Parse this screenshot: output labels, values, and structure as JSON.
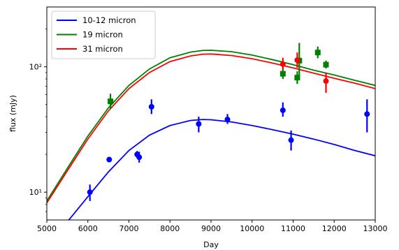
{
  "chart_data": {
    "type": "scatter",
    "xlabel": "Day",
    "ylabel": "flux (mJy)",
    "xlim": [
      5000,
      13000
    ],
    "ylim": [
      6,
      300
    ],
    "yscale": "log",
    "grid": false,
    "legend_position": "top-left",
    "x_ticks": [
      5000,
      6000,
      7000,
      8000,
      9000,
      10000,
      11000,
      12000,
      13000
    ],
    "x_tick_labels": [
      "5000",
      "6000",
      "7000",
      "8000",
      "9000",
      "10000",
      "11000",
      "12000",
      "13000"
    ],
    "y_ticks": [
      10,
      100
    ],
    "y_tick_labels": [
      "10¹",
      "10²"
    ],
    "series": [
      {
        "name": "10-12 micron",
        "color": "#0000ff",
        "marker": "circle",
        "points": [
          {
            "x": 6050,
            "y": 10,
            "ylo": 8.5,
            "yhi": 11.5
          },
          {
            "x": 6520,
            "y": 18.2,
            "ylo": 17.3,
            "yhi": 19.1
          },
          {
            "x": 7200,
            "y": 20,
            "ylo": 18.8,
            "yhi": 21.3
          },
          {
            "x": 7250,
            "y": 19,
            "ylo": 17.2,
            "yhi": 21
          },
          {
            "x": 7550,
            "y": 48,
            "ylo": 42,
            "yhi": 55
          },
          {
            "x": 8700,
            "y": 35,
            "ylo": 30,
            "yhi": 40
          },
          {
            "x": 9400,
            "y": 38,
            "ylo": 35,
            "yhi": 42
          },
          {
            "x": 10750,
            "y": 45,
            "ylo": 40,
            "yhi": 52
          },
          {
            "x": 10950,
            "y": 26,
            "ylo": 21.5,
            "yhi": 31
          },
          {
            "x": 12800,
            "y": 42,
            "ylo": 30,
            "yhi": 55
          }
        ],
        "model": [
          {
            "x": 5000,
            "y": 3.8
          },
          {
            "x": 5500,
            "y": 5.8
          },
          {
            "x": 6000,
            "y": 9.2
          },
          {
            "x": 6500,
            "y": 14.5
          },
          {
            "x": 7000,
            "y": 21.5
          },
          {
            "x": 7500,
            "y": 28.5
          },
          {
            "x": 8000,
            "y": 34
          },
          {
            "x": 8500,
            "y": 37.3
          },
          {
            "x": 8800,
            "y": 38
          },
          {
            "x": 9000,
            "y": 37.8
          },
          {
            "x": 9500,
            "y": 36.3
          },
          {
            "x": 10000,
            "y": 34
          },
          {
            "x": 10500,
            "y": 31.5
          },
          {
            "x": 11000,
            "y": 29
          },
          {
            "x": 11500,
            "y": 26.5
          },
          {
            "x": 12000,
            "y": 24
          },
          {
            "x": 12500,
            "y": 21.5
          },
          {
            "x": 13000,
            "y": 19.5
          }
        ]
      },
      {
        "name": "19 micron",
        "color": "#008000",
        "marker": "square",
        "points": [
          {
            "x": 6550,
            "y": 53,
            "ylo": 46,
            "yhi": 61
          },
          {
            "x": 10750,
            "y": 88,
            "ylo": 80,
            "yhi": 97
          },
          {
            "x": 11100,
            "y": 82,
            "ylo": 73,
            "yhi": 92
          },
          {
            "x": 11150,
            "y": 112,
            "ylo": 80,
            "yhi": 155
          },
          {
            "x": 11600,
            "y": 130,
            "ylo": 117,
            "yhi": 145
          },
          {
            "x": 11800,
            "y": 104,
            "ylo": 97,
            "yhi": 112
          }
        ],
        "model": [
          {
            "x": 5000,
            "y": 8.5
          },
          {
            "x": 5500,
            "y": 15.5
          },
          {
            "x": 6000,
            "y": 28
          },
          {
            "x": 6500,
            "y": 47
          },
          {
            "x": 7000,
            "y": 71
          },
          {
            "x": 7500,
            "y": 96
          },
          {
            "x": 8000,
            "y": 118
          },
          {
            "x": 8500,
            "y": 131
          },
          {
            "x": 8800,
            "y": 135
          },
          {
            "x": 9000,
            "y": 135.5
          },
          {
            "x": 9500,
            "y": 132
          },
          {
            "x": 10000,
            "y": 124
          },
          {
            "x": 10500,
            "y": 114
          },
          {
            "x": 11000,
            "y": 104
          },
          {
            "x": 11500,
            "y": 94
          },
          {
            "x": 12000,
            "y": 86
          },
          {
            "x": 12500,
            "y": 78
          },
          {
            "x": 13000,
            "y": 71
          }
        ]
      },
      {
        "name": "31 micron",
        "color": "#ff0000",
        "marker": "circle",
        "points": [
          {
            "x": 10750,
            "y": 105,
            "ylo": 95,
            "yhi": 118
          },
          {
            "x": 11100,
            "y": 113,
            "ylo": 98,
            "yhi": 130
          },
          {
            "x": 11800,
            "y": 77,
            "ylo": 62,
            "yhi": 90
          }
        ],
        "model": [
          {
            "x": 5000,
            "y": 8.2
          },
          {
            "x": 5500,
            "y": 14.8
          },
          {
            "x": 6000,
            "y": 26.5
          },
          {
            "x": 6500,
            "y": 44.5
          },
          {
            "x": 7000,
            "y": 67
          },
          {
            "x": 7500,
            "y": 90
          },
          {
            "x": 8000,
            "y": 110
          },
          {
            "x": 8500,
            "y": 122
          },
          {
            "x": 8800,
            "y": 126
          },
          {
            "x": 9000,
            "y": 126.5
          },
          {
            "x": 9500,
            "y": 123
          },
          {
            "x": 10000,
            "y": 116
          },
          {
            "x": 10500,
            "y": 107
          },
          {
            "x": 11000,
            "y": 98
          },
          {
            "x": 11500,
            "y": 89
          },
          {
            "x": 12000,
            "y": 81
          },
          {
            "x": 12500,
            "y": 74
          },
          {
            "x": 13000,
            "y": 67
          }
        ]
      }
    ]
  }
}
